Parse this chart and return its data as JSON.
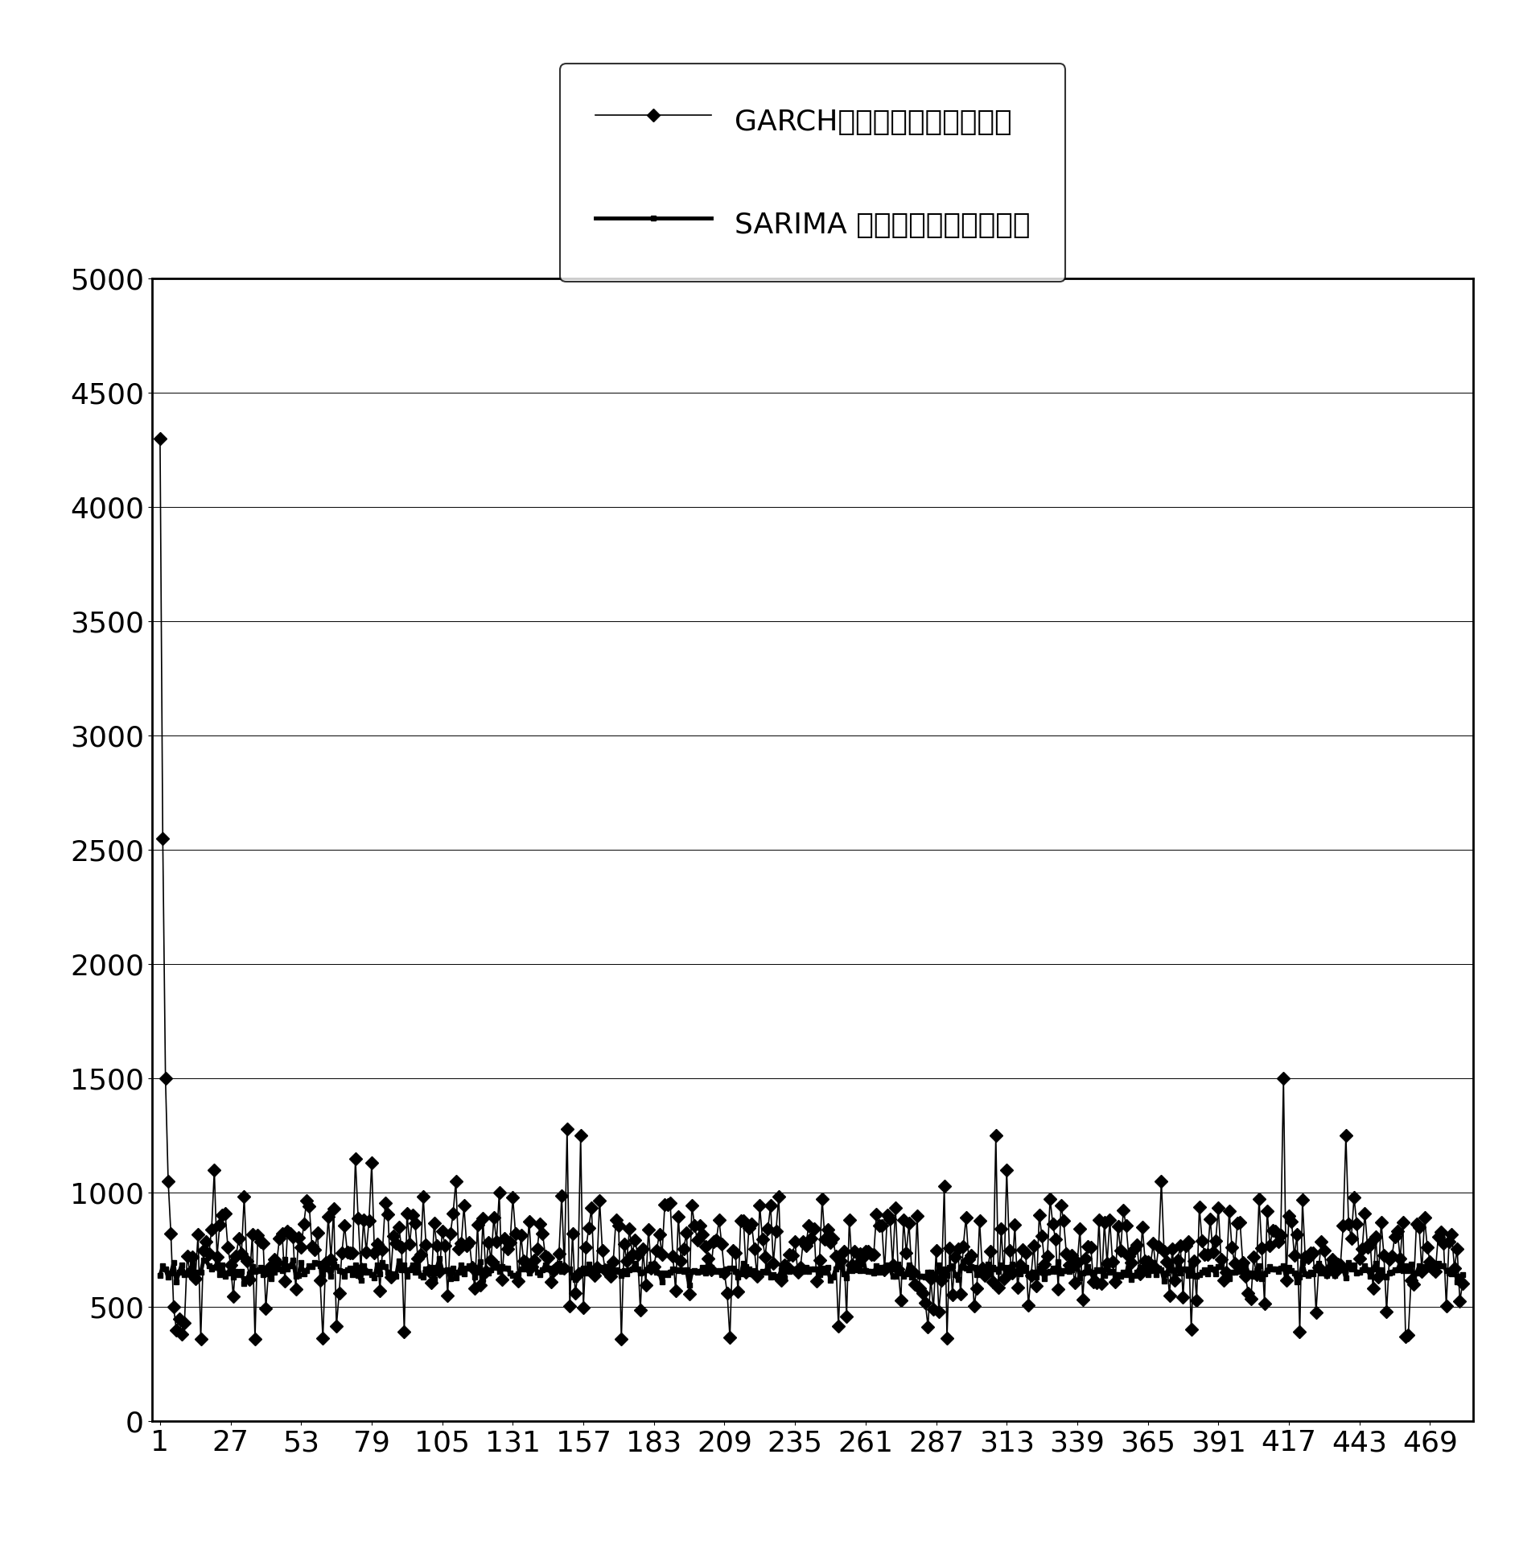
{
  "garch_label": "GARCH模型预测置信区间宽度",
  "sarima_label": "SARIMA 模型预测置信区间宽度",
  "ylim": [
    0,
    5000
  ],
  "yticks": [
    0,
    500,
    1000,
    1500,
    2000,
    2500,
    3000,
    3500,
    4000,
    4500,
    5000
  ],
  "xtick_labels": [
    "1",
    "27",
    "53",
    "79",
    "105",
    "131",
    "157",
    "183",
    "209",
    "235",
    "261",
    "287",
    "313",
    "339",
    "365",
    "391",
    "417",
    "443",
    "469"
  ],
  "xtick_positions": [
    1,
    27,
    53,
    79,
    105,
    131,
    157,
    183,
    209,
    235,
    261,
    287,
    313,
    339,
    365,
    391,
    417,
    443,
    469
  ],
  "n_points": 481,
  "background_color": "#ffffff",
  "line_color": "#000000",
  "legend_fontsize": 26,
  "tick_fontsize": 26,
  "sarima_base": 660,
  "garch_base": 750
}
